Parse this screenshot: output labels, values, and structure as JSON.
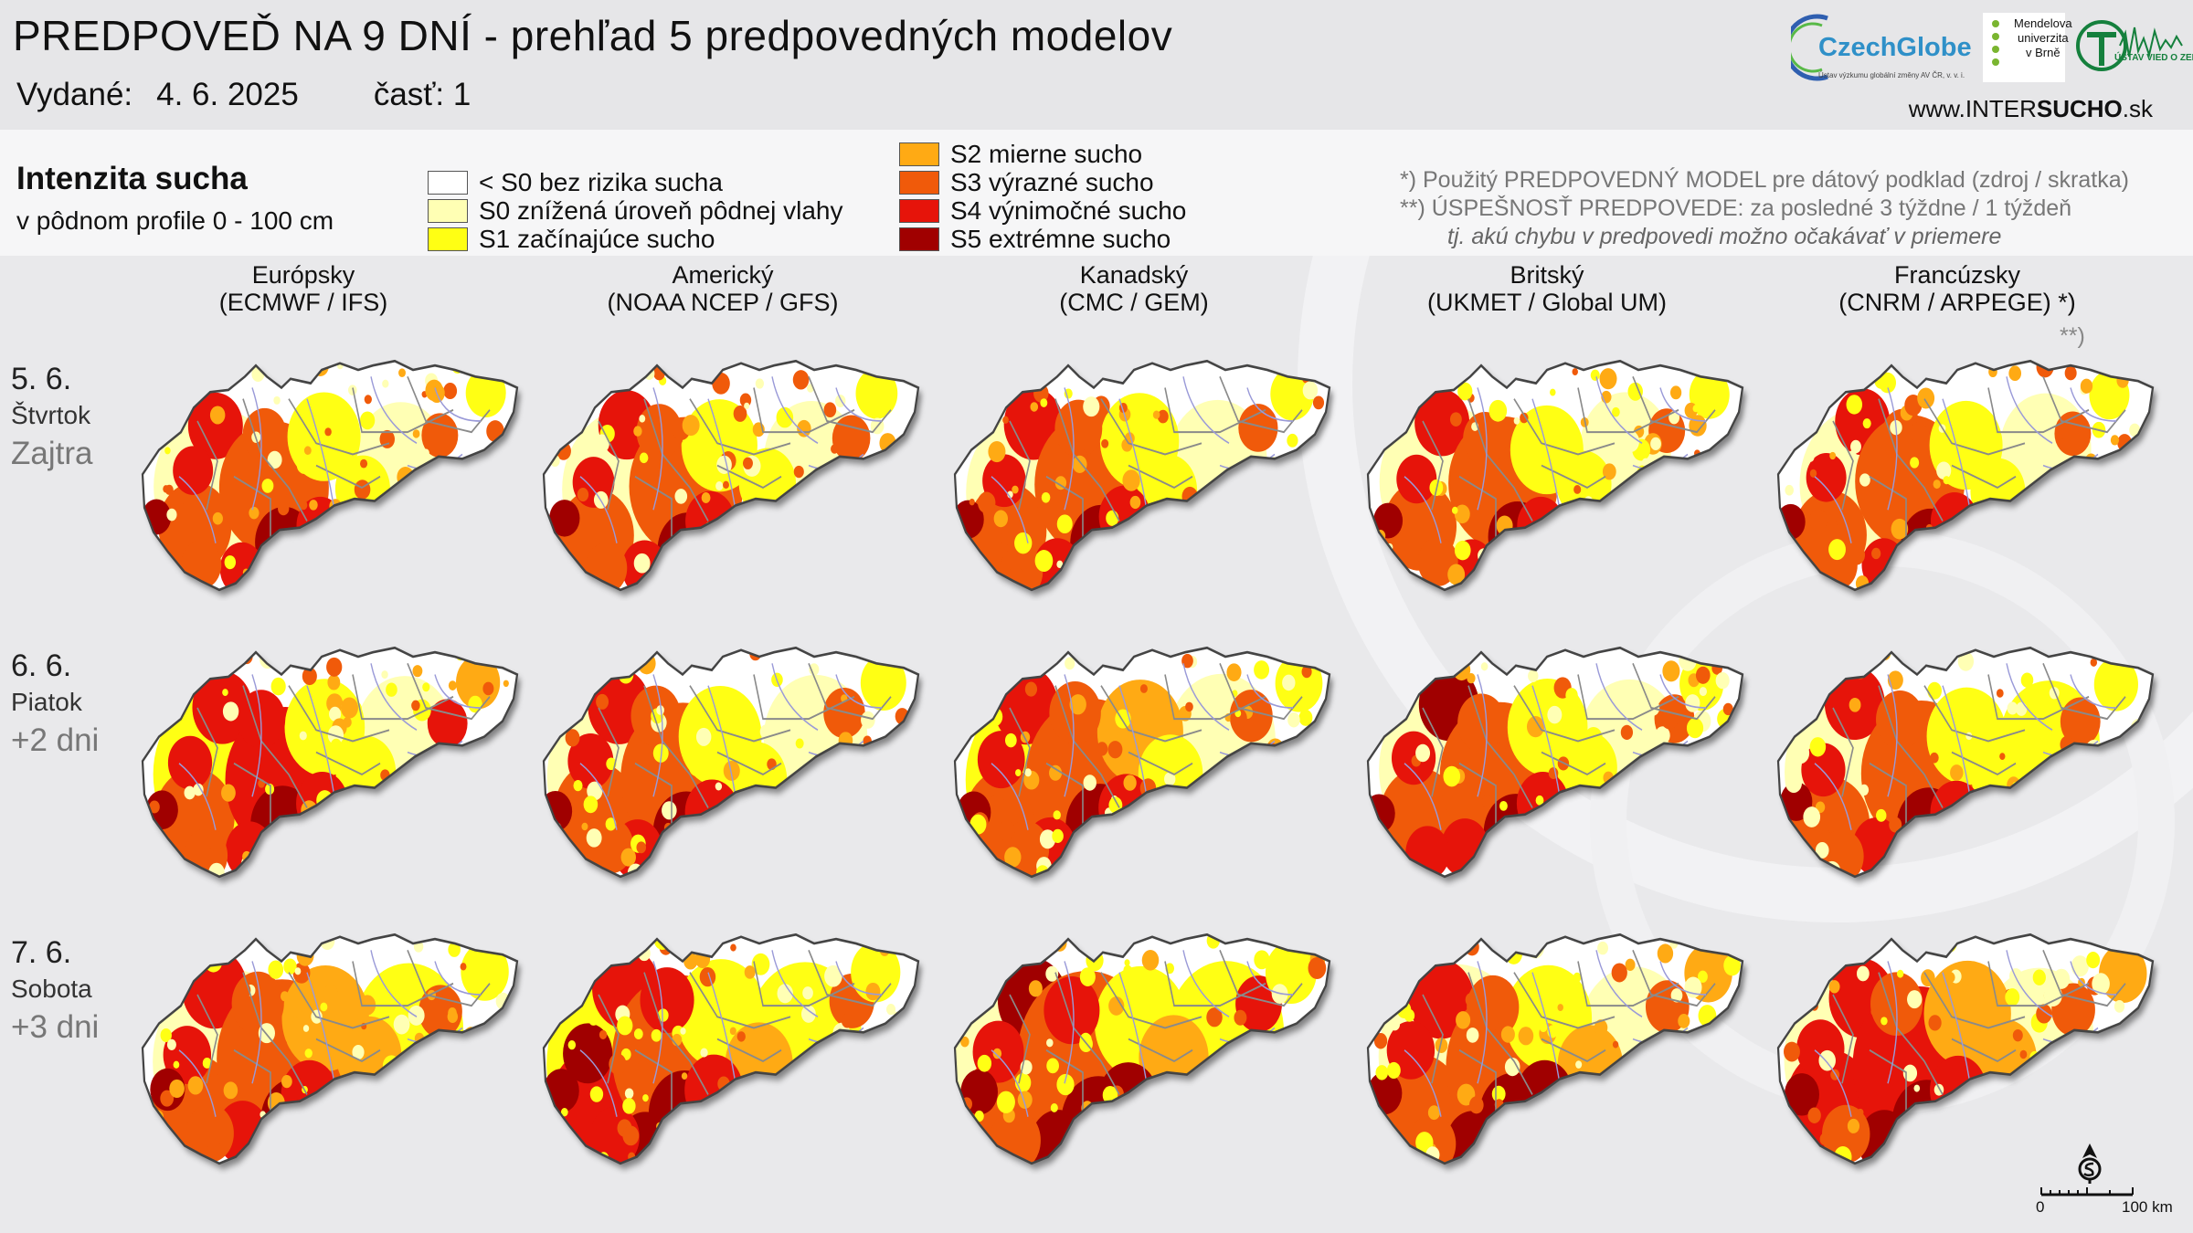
{
  "header": {
    "title": "PREDPOVEĎ NA 9 DNÍ - prehľad 5 predpovedných modelov",
    "issued_label": "Vydané:",
    "issued_date": "4. 6. 2025",
    "part_label": "časť:",
    "part_value": "1",
    "url_prefix": "www.INTER",
    "url_bold": "SUCHO",
    "url_suffix": ".sk"
  },
  "logos": {
    "czechglobe_name": "CzechGlobe",
    "czechglobe_sub": "Ústav výzkumu globální změny AV ČR, v. v. i.",
    "mendel_line1": "Mendelova",
    "mendel_line2": "univerzita",
    "mendel_line3": "v Brně",
    "uvz_name": "ÚSTAV VIED O ZEMI"
  },
  "legend": {
    "title": "Intenzita sucha",
    "subtitle": "v pôdnom profile 0 - 100 cm",
    "items": [
      {
        "label": "< S0 bez rizika sucha",
        "color": "#ffffff"
      },
      {
        "label": "S0 znížená úroveň pôdnej vlahy",
        "color": "#ffffb4"
      },
      {
        "label": "S1 začínajúce sucho",
        "color": "#ffff14"
      },
      {
        "label": "S2 mierne sucho",
        "color": "#ffaa14"
      },
      {
        "label": "S3 výrazné sucho",
        "color": "#f05a0a"
      },
      {
        "label": "S4 výnimočné sucho",
        "color": "#e6140a"
      },
      {
        "label": "S5 extrémne sucho",
        "color": "#a00000"
      }
    ]
  },
  "notes": {
    "line1": "*)   Použitý PREDPOVEDNÝ MODEL pre dátový podklad (zdroj / skratka)",
    "line2": "**) ÚSPEŠNOSŤ PREDPOVEDE: za posledné 3 týždne / 1 týždeň",
    "line3": "tj. akú chybu v predpovedi možno očakávať v priemere"
  },
  "columns": [
    {
      "name": "Európsky",
      "model": "(ECMWF / IFS)"
    },
    {
      "name": "Americký",
      "model": "(NOAA NCEP / GFS)"
    },
    {
      "name": "Kanadský",
      "model": "(CMC / GEM)"
    },
    {
      "name": "Britský",
      "model": "(UKMET / Global UM)"
    },
    {
      "name": "Francúzsky",
      "model": "(CNRM / ARPEGE) *)"
    }
  ],
  "accuracy_marker": "**)",
  "rows": [
    {
      "date": "5. 6.",
      "weekday": "Štvrtok",
      "relative": "Zajtra"
    },
    {
      "date": "6. 6.",
      "weekday": "Piatok",
      "relative": "+2 dni"
    },
    {
      "date": "7. 6.",
      "weekday": "Sobota",
      "relative": "+3 dni"
    }
  ],
  "scalebar": {
    "start": "0",
    "end": "100 km"
  },
  "map_icons": [
    "north-arrow-icon"
  ],
  "colors": {
    "outline": "#444444",
    "rivers": "#9a9ad8",
    "districts": "#8a8a8a"
  }
}
